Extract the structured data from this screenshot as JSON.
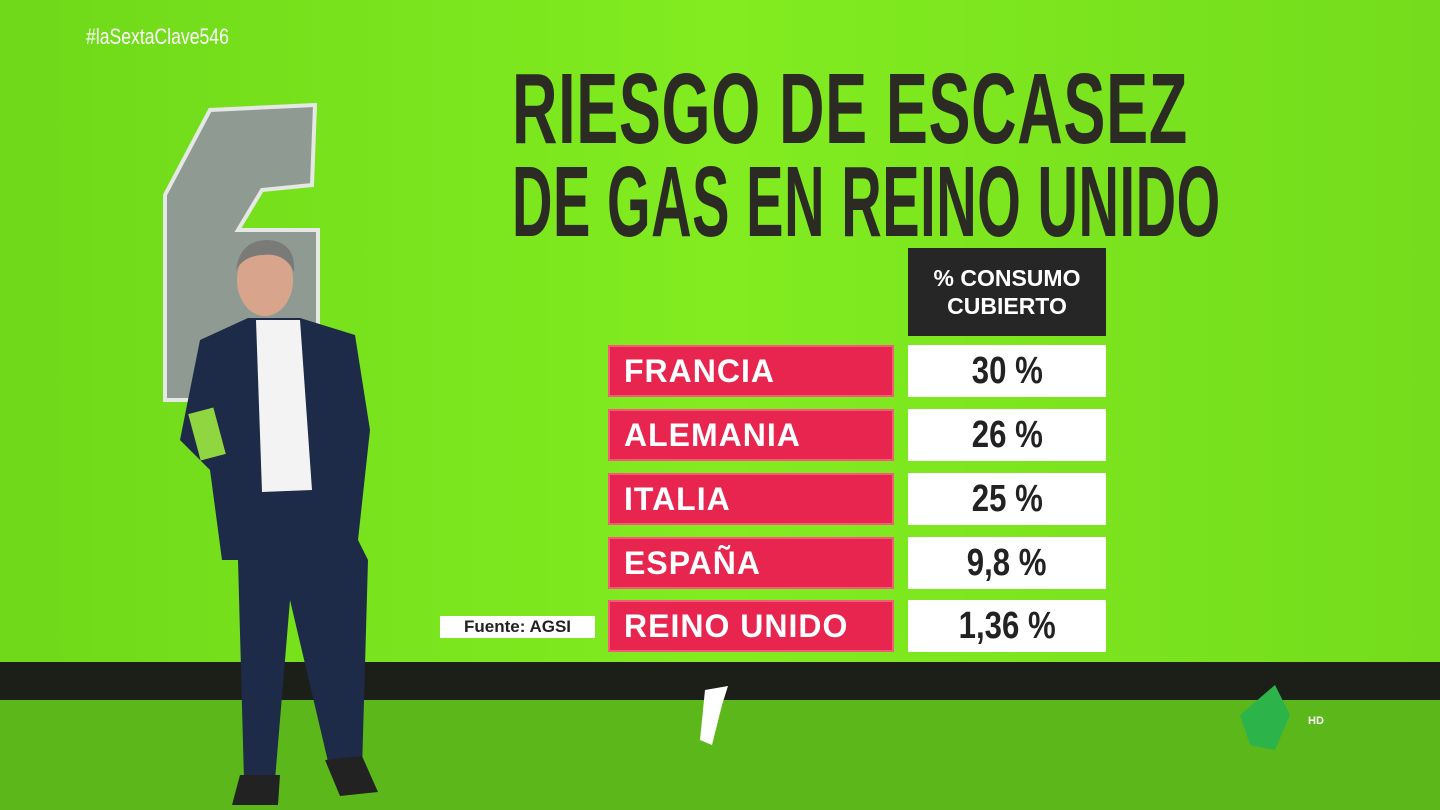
{
  "hashtag": "#laSextaClave546",
  "title": {
    "line1": "RIESGO DE ESCASEZ",
    "line2": "DE GAS EN REINO UNIDO"
  },
  "table": {
    "header": [
      "% CONSUMO",
      "CUBIERTO"
    ],
    "rows": [
      [
        "FRANCIA",
        "30 %"
      ],
      [
        "ALEMANIA",
        "26 %"
      ],
      [
        "ITALIA",
        "25 %"
      ],
      [
        "ESPAÑA",
        "9,8 %"
      ],
      [
        "REINO UNIDO",
        "1,36 %"
      ]
    ]
  },
  "source": "Fuente: AGSI",
  "logo": {
    "badge": "HD"
  }
}
